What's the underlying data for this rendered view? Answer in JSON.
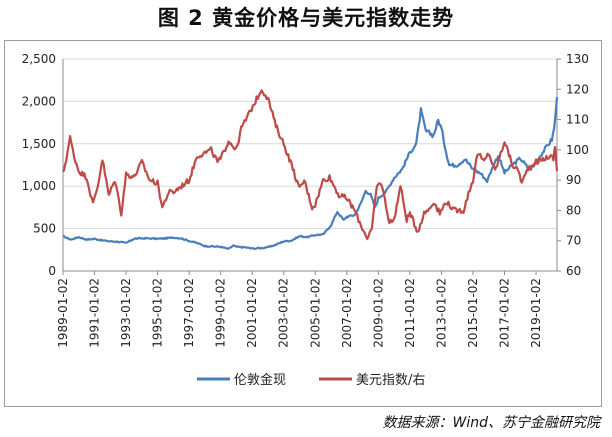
{
  "title": "图 2  黄金价格与美元指数走势",
  "source": "数据来源：Wind、苏宁金融研究院",
  "colors": {
    "gold": "#4a7ebb",
    "usd": "#be4b48",
    "grid": "#d9d9d9",
    "axis": "#8c8c8c"
  },
  "chart_data": {
    "type": "line",
    "title": "图 2  黄金价格与美元指数走势",
    "xlabel": "",
    "ylabel": "",
    "y2label": "",
    "grid": "horizontal",
    "legend_position": "bottom",
    "xlim": [
      1989.0,
      2020.33
    ],
    "ylim": [
      0,
      2500
    ],
    "y2lim": [
      60,
      130
    ],
    "x_tick_labels": [
      "1989-01-02",
      "1991-01-02",
      "1993-01-02",
      "1995-01-02",
      "1997-01-02",
      "1999-01-02",
      "2001-01-02",
      "2003-01-02",
      "2005-01-02",
      "2007-01-02",
      "2009-01-02",
      "2011-01-02",
      "2013-01-02",
      "2015-01-02",
      "2017-01-02",
      "2019-01-02"
    ],
    "y_tick_labels": [
      "0",
      "500",
      "1,000",
      "1,500",
      "2,000",
      "2,500"
    ],
    "y2_tick_labels": [
      "60",
      "70",
      "80",
      "90",
      "100",
      "110",
      "120",
      "130"
    ],
    "series": [
      {
        "name": "伦敦金现",
        "axis": "left",
        "points": [
          [
            1989.0,
            410
          ],
          [
            1989.5,
            370
          ],
          [
            1990.0,
            400
          ],
          [
            1990.5,
            370
          ],
          [
            1991.0,
            380
          ],
          [
            1991.5,
            360
          ],
          [
            1992.0,
            350
          ],
          [
            1992.5,
            345
          ],
          [
            1993.0,
            330
          ],
          [
            1993.5,
            380
          ],
          [
            1994.0,
            385
          ],
          [
            1994.5,
            385
          ],
          [
            1995.0,
            380
          ],
          [
            1995.5,
            385
          ],
          [
            1996.0,
            395
          ],
          [
            1996.5,
            385
          ],
          [
            1997.0,
            355
          ],
          [
            1997.5,
            330
          ],
          [
            1998.0,
            295
          ],
          [
            1998.5,
            290
          ],
          [
            1999.0,
            285
          ],
          [
            1999.5,
            260
          ],
          [
            1999.8,
            300
          ],
          [
            2000.0,
            285
          ],
          [
            2000.5,
            280
          ],
          [
            2001.0,
            265
          ],
          [
            2001.5,
            270
          ],
          [
            2002.0,
            280
          ],
          [
            2002.5,
            310
          ],
          [
            2003.0,
            350
          ],
          [
            2003.5,
            360
          ],
          [
            2004.0,
            410
          ],
          [
            2004.5,
            400
          ],
          [
            2005.0,
            425
          ],
          [
            2005.5,
            430
          ],
          [
            2006.0,
            540
          ],
          [
            2006.4,
            700
          ],
          [
            2006.8,
            600
          ],
          [
            2007.0,
            640
          ],
          [
            2007.5,
            660
          ],
          [
            2007.9,
            800
          ],
          [
            2008.2,
            950
          ],
          [
            2008.5,
            900
          ],
          [
            2008.8,
            750
          ],
          [
            2009.0,
            860
          ],
          [
            2009.5,
            940
          ],
          [
            2010.0,
            1100
          ],
          [
            2010.5,
            1200
          ],
          [
            2011.0,
            1400
          ],
          [
            2011.4,
            1500
          ],
          [
            2011.7,
            1890
          ],
          [
            2012.0,
            1650
          ],
          [
            2012.5,
            1600
          ],
          [
            2012.8,
            1780
          ],
          [
            2013.0,
            1680
          ],
          [
            2013.3,
            1400
          ],
          [
            2013.5,
            1250
          ],
          [
            2014.0,
            1250
          ],
          [
            2014.5,
            1320
          ],
          [
            2015.0,
            1200
          ],
          [
            2015.5,
            1150
          ],
          [
            2015.9,
            1060
          ],
          [
            2016.3,
            1250
          ],
          [
            2016.6,
            1360
          ],
          [
            2017.0,
            1160
          ],
          [
            2017.5,
            1250
          ],
          [
            2018.0,
            1330
          ],
          [
            2018.6,
            1190
          ],
          [
            2019.0,
            1290
          ],
          [
            2019.5,
            1420
          ],
          [
            2019.8,
            1500
          ],
          [
            2020.0,
            1550
          ],
          [
            2020.15,
            1680
          ],
          [
            2020.33,
            2050
          ]
        ]
      },
      {
        "name": "美元指数/右",
        "axis": "right",
        "points": [
          [
            1989.0,
            92
          ],
          [
            1989.2,
            97
          ],
          [
            1989.45,
            104
          ],
          [
            1989.7,
            98
          ],
          [
            1990.0,
            93
          ],
          [
            1990.5,
            91
          ],
          [
            1990.9,
            82
          ],
          [
            1991.2,
            88
          ],
          [
            1991.5,
            97
          ],
          [
            1991.9,
            85
          ],
          [
            1992.3,
            90
          ],
          [
            1992.7,
            79
          ],
          [
            1993.0,
            92
          ],
          [
            1993.5,
            91
          ],
          [
            1994.0,
            96
          ],
          [
            1994.5,
            90
          ],
          [
            1995.0,
            89
          ],
          [
            1995.3,
            81
          ],
          [
            1995.7,
            86
          ],
          [
            1996.0,
            86
          ],
          [
            1996.5,
            88
          ],
          [
            1997.0,
            90
          ],
          [
            1997.5,
            98
          ],
          [
            1998.0,
            99
          ],
          [
            1998.4,
            100
          ],
          [
            1998.8,
            96
          ],
          [
            1999.0,
            97
          ],
          [
            1999.5,
            103
          ],
          [
            2000.0,
            100
          ],
          [
            2000.3,
            107
          ],
          [
            2000.8,
            112
          ],
          [
            2001.2,
            116
          ],
          [
            2001.6,
            120
          ],
          [
            2002.0,
            117
          ],
          [
            2002.5,
            108
          ],
          [
            2003.0,
            102
          ],
          [
            2003.5,
            95
          ],
          [
            2004.0,
            87
          ],
          [
            2004.3,
            90
          ],
          [
            2004.8,
            81
          ],
          [
            2005.0,
            82
          ],
          [
            2005.5,
            90
          ],
          [
            2005.9,
            91
          ],
          [
            2006.5,
            85
          ],
          [
            2007.0,
            84
          ],
          [
            2007.5,
            80
          ],
          [
            2007.9,
            75
          ],
          [
            2008.3,
            71
          ],
          [
            2008.6,
            74
          ],
          [
            2008.9,
            88
          ],
          [
            2009.2,
            89
          ],
          [
            2009.7,
            76
          ],
          [
            2010.0,
            77
          ],
          [
            2010.4,
            88
          ],
          [
            2010.8,
            77
          ],
          [
            2011.0,
            79
          ],
          [
            2011.5,
            73
          ],
          [
            2011.9,
            79
          ],
          [
            2012.3,
            81
          ],
          [
            2012.5,
            83
          ],
          [
            2012.9,
            79
          ],
          [
            2013.3,
            83
          ],
          [
            2013.8,
            80
          ],
          [
            2014.0,
            80
          ],
          [
            2014.4,
            80
          ],
          [
            2014.8,
            87
          ],
          [
            2015.0,
            90
          ],
          [
            2015.3,
            99
          ],
          [
            2015.7,
            96
          ],
          [
            2016.0,
            99
          ],
          [
            2016.4,
            93
          ],
          [
            2016.9,
            101
          ],
          [
            2017.0,
            103
          ],
          [
            2017.5,
            95
          ],
          [
            2017.9,
            93
          ],
          [
            2018.1,
            89
          ],
          [
            2018.5,
            94
          ],
          [
            2019.0,
            96
          ],
          [
            2019.5,
            97
          ],
          [
            2019.9,
            98
          ],
          [
            2020.1,
            97
          ],
          [
            2020.2,
            101
          ],
          [
            2020.33,
            93
          ]
        ]
      }
    ]
  }
}
